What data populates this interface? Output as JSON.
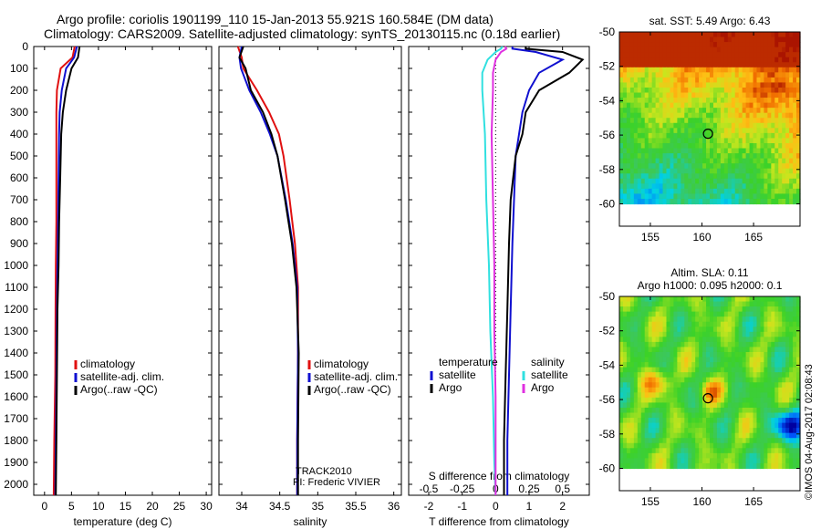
{
  "title": {
    "line1": "Argo profile: coriolis 1901199_110 15-Jan-2013 55.921S 160.584E (DM data)",
    "line2": "Climatology: CARS2009. Satellite-adjusted climatology: synTS_20130115.nc (0.18d earlier)"
  },
  "colors": {
    "climatology": "#e01010",
    "satellite": "#1010d0",
    "argo": "#000000",
    "sat_salinity": "#30e0e0",
    "argo_salinity": "#e030e0"
  },
  "credits": {
    "imos": "©IMOS 04-Aug-2017 02:08:43",
    "track": "TRACK2010",
    "pi": "PI: Frederic VIVIER"
  },
  "chart_data": [
    {
      "type": "line",
      "id": "temperature",
      "xlabel": "temperature (deg C)",
      "ylabel": "",
      "xlim": [
        -2,
        31
      ],
      "ylim": [
        2050,
        0
      ],
      "x_ticks": [
        0,
        5,
        10,
        15,
        20,
        25,
        30
      ],
      "y_ticks": [
        0,
        100,
        200,
        300,
        400,
        500,
        600,
        700,
        800,
        900,
        1000,
        1100,
        1200,
        1300,
        1400,
        1500,
        1600,
        1700,
        1800,
        1900,
        2000
      ],
      "legend": [
        "climatology",
        "satellite-adj. clim.",
        "Argo(..raw -QC)"
      ],
      "series": [
        {
          "name": "climatology",
          "color": "#e01010",
          "x": [
            5.6,
            5.2,
            3.0,
            2.3,
            2.2,
            2.2,
            2.2,
            2.2,
            2.1,
            2.05,
            2.0,
            1.8,
            1.7
          ],
          "y": [
            0,
            50,
            100,
            200,
            300,
            400,
            600,
            800,
            1000,
            1200,
            1500,
            1800,
            2050
          ]
        },
        {
          "name": "satellite-adj. clim.",
          "color": "#1010d0",
          "x": [
            6.0,
            5.5,
            4.0,
            3.2,
            2.8,
            2.7,
            2.6,
            2.5,
            2.4,
            2.3,
            2.2,
            2.1,
            2.0
          ],
          "y": [
            0,
            50,
            100,
            200,
            300,
            400,
            600,
            800,
            1000,
            1200,
            1500,
            1800,
            2050
          ]
        },
        {
          "name": "Argo(..raw -QC)",
          "color": "#000000",
          "x": [
            6.5,
            6.2,
            5.0,
            4.0,
            3.4,
            3.1,
            2.9,
            2.7,
            2.6,
            2.4,
            2.3,
            2.2,
            2.1
          ],
          "y": [
            0,
            50,
            100,
            200,
            300,
            400,
            600,
            800,
            1000,
            1200,
            1500,
            1800,
            2050
          ]
        }
      ]
    },
    {
      "type": "line",
      "id": "salinity",
      "xlabel": "salinity",
      "ylabel": "",
      "xlim": [
        33.7,
        36.1
      ],
      "ylim": [
        2050,
        0
      ],
      "x_ticks": [
        34,
        34.5,
        35,
        35.5,
        36
      ],
      "x_tick_labels": [
        "34",
        "34.5",
        "35",
        "35.5",
        "36"
      ],
      "legend": [
        "climatology",
        "satellite-adj. clim.",
        "Argo(..raw -QC)"
      ],
      "series": [
        {
          "name": "climatology",
          "color": "#e01010",
          "x": [
            33.95,
            34.0,
            34.02,
            34.2,
            34.36,
            34.49,
            34.55,
            34.63,
            34.7,
            34.74,
            34.74,
            34.73,
            34.73
          ],
          "y": [
            0,
            50,
            100,
            200,
            300,
            400,
            500,
            700,
            900,
            1100,
            1400,
            1800,
            2050
          ]
        },
        {
          "name": "satellite-adj. clim.",
          "color": "#1010d0",
          "x": [
            34.0,
            33.97,
            33.99,
            34.1,
            34.25,
            34.37,
            34.47,
            34.58,
            34.67,
            34.73,
            34.74,
            34.73,
            34.73
          ],
          "y": [
            0,
            50,
            100,
            200,
            300,
            400,
            500,
            700,
            900,
            1100,
            1400,
            1800,
            2050
          ]
        },
        {
          "name": "Argo(..raw -QC)",
          "color": "#000000",
          "x": [
            34.02,
            33.97,
            34.05,
            34.12,
            34.28,
            34.39,
            34.47,
            34.57,
            34.66,
            34.72,
            34.75,
            34.74,
            34.74
          ],
          "y": [
            0,
            50,
            100,
            200,
            300,
            400,
            500,
            700,
            900,
            1100,
            1400,
            1800,
            2050
          ]
        }
      ]
    },
    {
      "type": "line",
      "id": "differences",
      "xlabel": "T difference from climatology",
      "x2label": "S difference from climatology",
      "ylabel": "",
      "xlim": [
        -2.6,
        2.8
      ],
      "ylim": [
        2050,
        0
      ],
      "x_ticks": [
        -2,
        -1,
        0,
        1,
        2
      ],
      "x2lim": [
        -0.65,
        0.7
      ],
      "x2_ticks": [
        -0.5,
        -0.25,
        0,
        0.25,
        0.5
      ],
      "x2_tick_labels": [
        "-0.5",
        "-0.25",
        "0",
        "0.25",
        "0.5"
      ],
      "legend_temperature": {
        "heading": "temperature",
        "entries": [
          "satellite",
          "Argo"
        ]
      },
      "legend_salinity": {
        "heading": "salinity",
        "entries": [
          "satellite",
          "Argo"
        ]
      },
      "series": [
        {
          "name": "temperature satellite",
          "color": "#1010d0",
          "x": [
            0.5,
            0.5,
            1.2,
            2.0,
            1.3,
            1.0,
            0.8,
            0.7,
            0.6,
            0.55,
            0.5,
            0.45,
            0.4,
            0.35,
            0.35
          ],
          "y": [
            0,
            10,
            25,
            60,
            120,
            200,
            300,
            400,
            500,
            700,
            900,
            1200,
            1500,
            1800,
            2050
          ]
        },
        {
          "name": "temperature Argo",
          "color": "#000000",
          "x": [
            0.9,
            0.9,
            2.0,
            2.6,
            2.2,
            1.3,
            0.9,
            0.8,
            0.6,
            0.45,
            0.4,
            0.35,
            0.3,
            0.25,
            0.25
          ],
          "y": [
            0,
            10,
            25,
            60,
            120,
            200,
            300,
            400,
            500,
            700,
            900,
            1200,
            1500,
            1800,
            2050
          ]
        },
        {
          "name": "salinity satellite",
          "color": "#30e0e0",
          "x": [
            0.05,
            0.04,
            0.0,
            -0.06,
            -0.1,
            -0.1,
            -0.08,
            -0.07,
            -0.05,
            -0.04,
            -0.02,
            -0.01,
            0.0
          ],
          "y": [
            0,
            10,
            25,
            60,
            120,
            200,
            400,
            700,
            1000,
            1300,
            1600,
            1900,
            2050
          ]
        },
        {
          "name": "salinity Argo",
          "color": "#e030e0",
          "x": [
            0.07,
            0.08,
            0.04,
            0.0,
            -0.02,
            -0.02,
            -0.03,
            -0.02,
            -0.01,
            -0.01,
            0.0,
            0.0,
            0.0
          ],
          "y": [
            0,
            10,
            25,
            60,
            120,
            200,
            400,
            700,
            1000,
            1300,
            1600,
            1900,
            2050
          ]
        }
      ]
    },
    {
      "type": "heatmap",
      "id": "sst_map",
      "title": "sat. SST: 5.49  Argo: 6.43",
      "xlim": [
        152,
        169.5
      ],
      "ylim": [
        -61.3,
        -50
      ],
      "x_ticks": [
        155,
        160,
        165
      ],
      "y_ticks": [
        -50,
        -52,
        -54,
        -56,
        -58,
        -60
      ],
      "data_extent_lat": [
        -60,
        -50
      ],
      "marker": {
        "lon": 160.584,
        "lat": -55.921
      }
    },
    {
      "type": "heatmap",
      "id": "sla_map",
      "title": "Altim. SLA: 0.11",
      "subtitle": "Argo h1000: 0.095 h2000: 0.1",
      "xlim": [
        152,
        169.5
      ],
      "ylim": [
        -61.3,
        -50
      ],
      "x_ticks": [
        155,
        160,
        165
      ],
      "y_ticks": [
        -50,
        -52,
        -54,
        -56,
        -58,
        -60
      ],
      "data_extent_lat": [
        -60,
        -50
      ],
      "marker": {
        "lon": 160.584,
        "lat": -55.921
      }
    }
  ]
}
